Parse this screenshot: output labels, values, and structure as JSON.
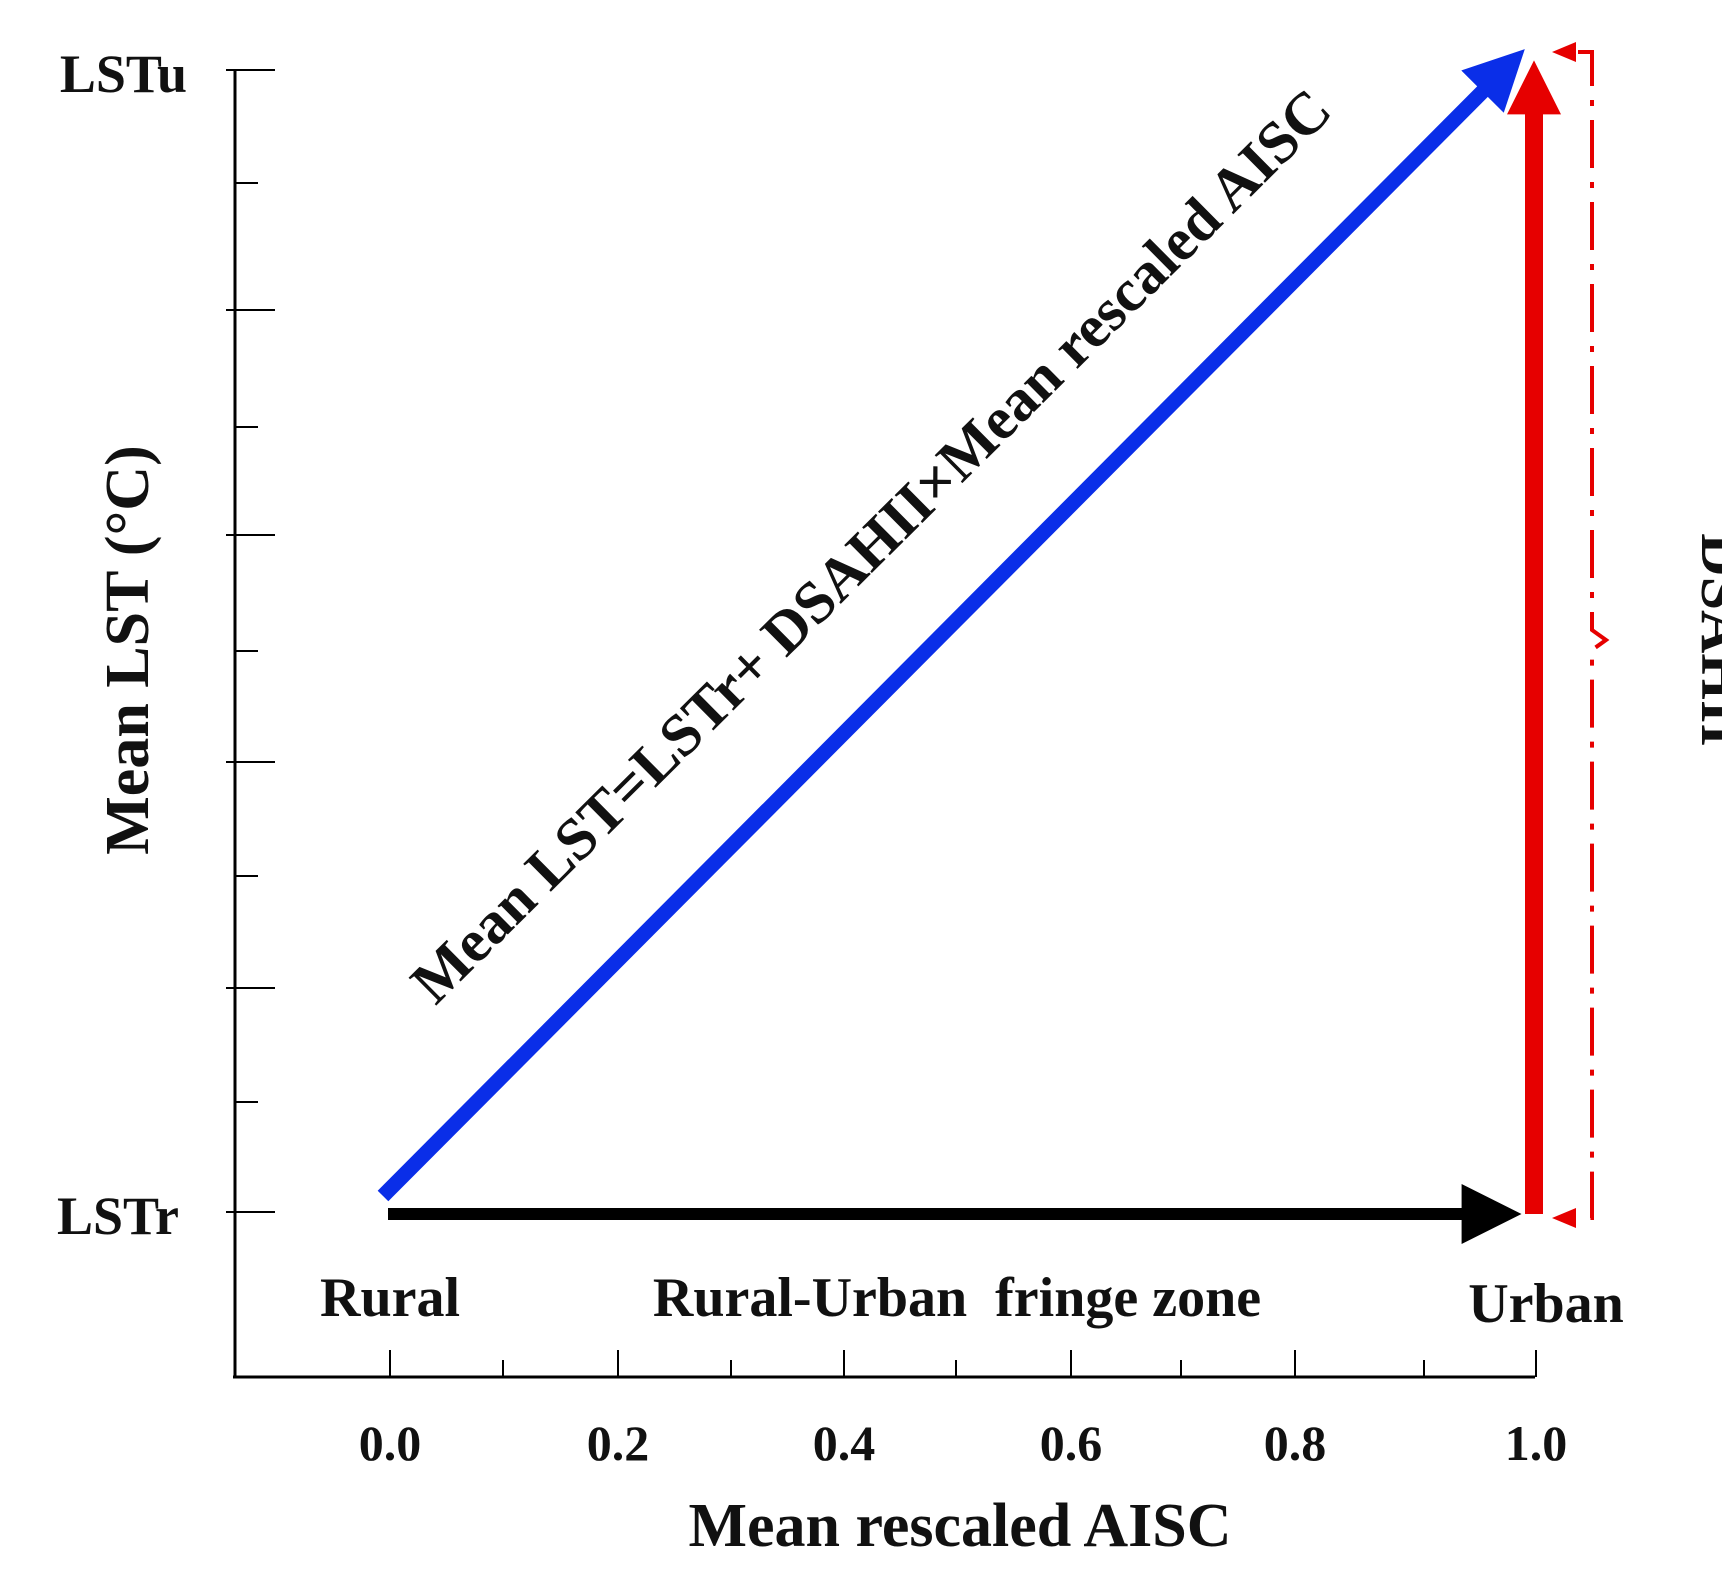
{
  "y_axis": {
    "label": "Mean LST (°C)",
    "top_tick_label": "LSTu",
    "bottom_tick_label": "LSTr"
  },
  "x_axis": {
    "label": "Mean rescaled AISC",
    "tick_labels": [
      "0.0",
      "0.2",
      "0.4",
      "0.6",
      "0.8",
      "1.0"
    ]
  },
  "zones": {
    "rural": "Rural",
    "fringe": "Rural-Urban  fringe zone",
    "urban": "Urban"
  },
  "equation": "Mean LST=LSTr+ DSAHII×Mean rescaled AISC",
  "bracket_label": "DSAHII",
  "colors": {
    "blue_arrow": "#0a2ee8",
    "red_arrow": "#e60000",
    "black_arrow": "#000000"
  }
}
